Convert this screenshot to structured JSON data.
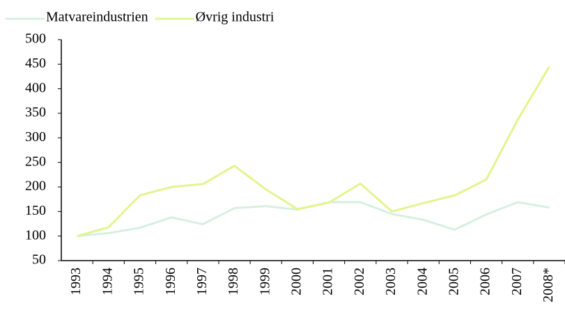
{
  "chart_data": {
    "type": "line",
    "categories": [
      "1993",
      "1994",
      "1995",
      "1996",
      "1997",
      "1998",
      "1999",
      "2000",
      "2001",
      "2002",
      "2003",
      "2004",
      "2005",
      "2006",
      "2007",
      "2008*"
    ],
    "series": [
      {
        "name": "Matvareindustrien",
        "color": "#d6f0df",
        "values": [
          100,
          106,
          117,
          138,
          124,
          157,
          161,
          154,
          169,
          169,
          145,
          133,
          113,
          144,
          169,
          158
        ]
      },
      {
        "name": "Øvrig industri",
        "color": "#e2f58e",
        "values": [
          100,
          118,
          183,
          200,
          206,
          243,
          195,
          155,
          168,
          207,
          150,
          167,
          183,
          215,
          337,
          445
        ]
      }
    ],
    "ylim": [
      50,
      500
    ],
    "yticks": [
      50,
      100,
      150,
      200,
      250,
      300,
      350,
      400,
      450,
      500
    ],
    "legend": "top-left"
  }
}
